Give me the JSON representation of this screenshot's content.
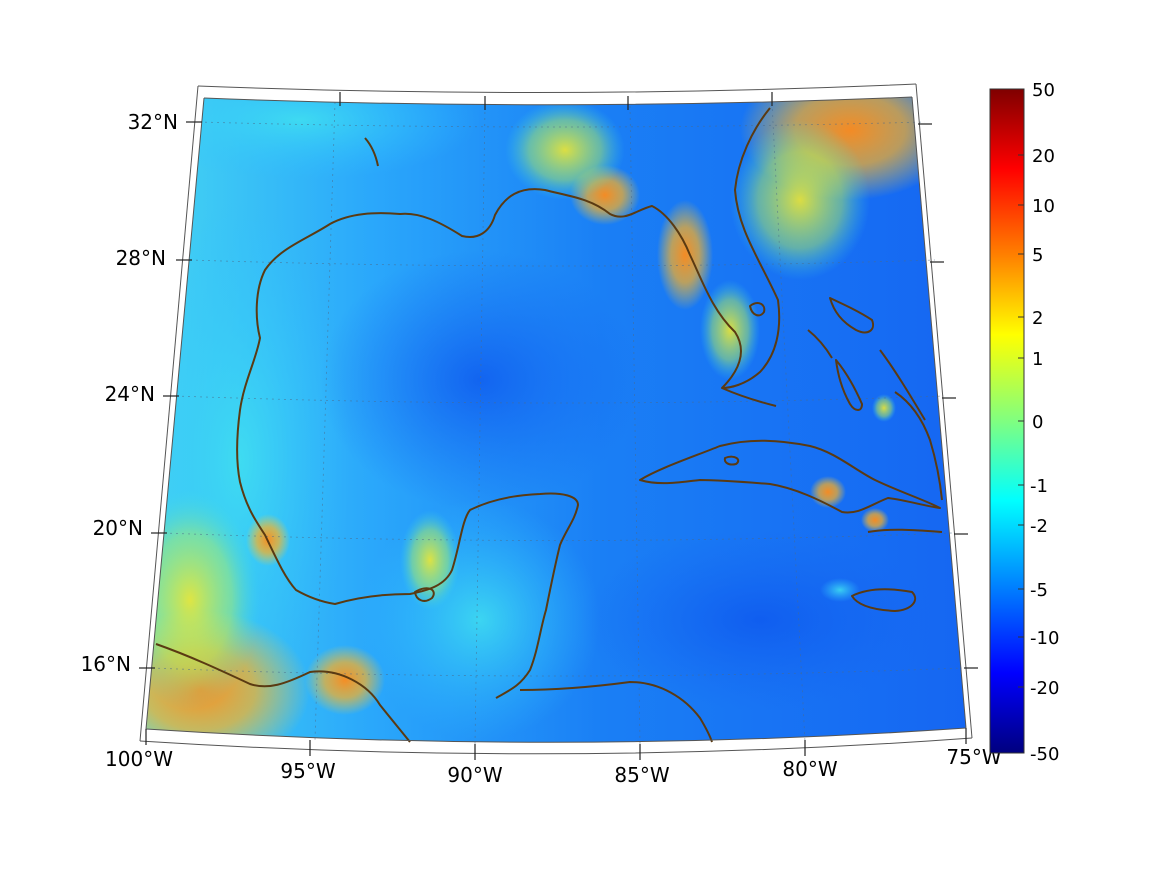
{
  "map": {
    "lon_labels": [
      "100°W",
      "95°W",
      "90°W",
      "85°W",
      "80°W",
      "75°W"
    ],
    "lat_labels": [
      "32°N",
      "28°N",
      "24°N",
      "20°N",
      "16°N"
    ],
    "coastline_color": "#5a3a12",
    "field_colors": {
      "ocean_deep": "#1565f2",
      "ocean_mid": "#1a82f5",
      "cyan": "#29b8ff",
      "shelf": "#45d6f2",
      "yellow": "#e8e830",
      "orange": "#ff9a1c",
      "red_orange": "#ff6a10"
    }
  },
  "colorbar": {
    "tick_labels": [
      "50",
      "20",
      "10",
      "5",
      "2",
      "1",
      "0",
      "-1",
      "-2",
      "-5",
      "-10",
      "-20",
      "-50"
    ],
    "stops": [
      "#7f0000",
      "#ff0000",
      "#ff8000",
      "#ffff00",
      "#80ff80",
      "#00ffff",
      "#0080ff",
      "#0000ff",
      "#00007f"
    ]
  }
}
